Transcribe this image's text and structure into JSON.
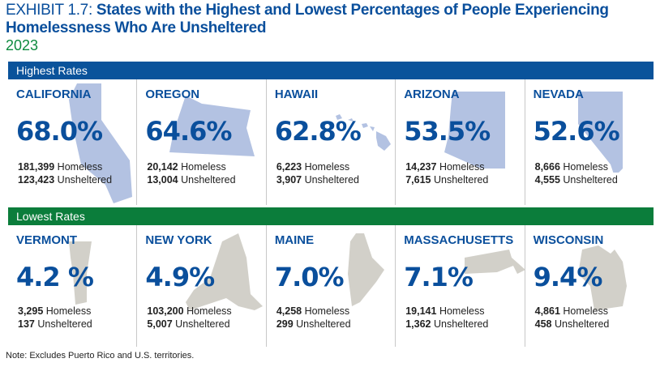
{
  "title": {
    "prefix": "EXHIBIT 1.7: ",
    "main": "States with the Highest and Lowest Percentages of People Experiencing Homelessness Who Are Unsheltered",
    "year": "2023"
  },
  "highest": {
    "label": "Highest Rates",
    "color": "#0a539b",
    "shape_color": "#b3c2e2",
    "states": [
      {
        "name": "CALIFORNIA",
        "pct": "68.0%",
        "homeless": "181,399",
        "unsheltered": "123,423"
      },
      {
        "name": "OREGON",
        "pct": "64.6%",
        "homeless": "20,142",
        "unsheltered": "13,004"
      },
      {
        "name": "HAWAII",
        "pct": "62.8%",
        "homeless": "6,223",
        "unsheltered": "3,907"
      },
      {
        "name": "ARIZONA",
        "pct": "53.5%",
        "homeless": "14,237",
        "unsheltered": "7,615"
      },
      {
        "name": "NEVADA",
        "pct": "52.6%",
        "homeless": "8,666",
        "unsheltered": "4,555"
      }
    ]
  },
  "lowest": {
    "label": "Lowest Rates",
    "color": "#0b7d3b",
    "shape_color": "#d2d0c9",
    "states": [
      {
        "name": "VERMONT",
        "pct": "4.2 %",
        "homeless": "3,295",
        "unsheltered": "137"
      },
      {
        "name": "NEW YORK",
        "pct": "4.9%",
        "homeless": "103,200",
        "unsheltered": "5,007"
      },
      {
        "name": "MAINE",
        "pct": "7.0%",
        "homeless": "4,258",
        "unsheltered": "299"
      },
      {
        "name": "MASSACHUSETTS",
        "pct": "7.1%",
        "homeless": "19,141",
        "unsheltered": "1,362"
      },
      {
        "name": "WISCONSIN",
        "pct": "9.4%",
        "homeless": "4,861",
        "unsheltered": "458"
      }
    ]
  },
  "labels": {
    "homeless": "Homeless",
    "unsheltered": "Unsheltered"
  },
  "note": "Note: Excludes Puerto Rico and U.S. territories."
}
